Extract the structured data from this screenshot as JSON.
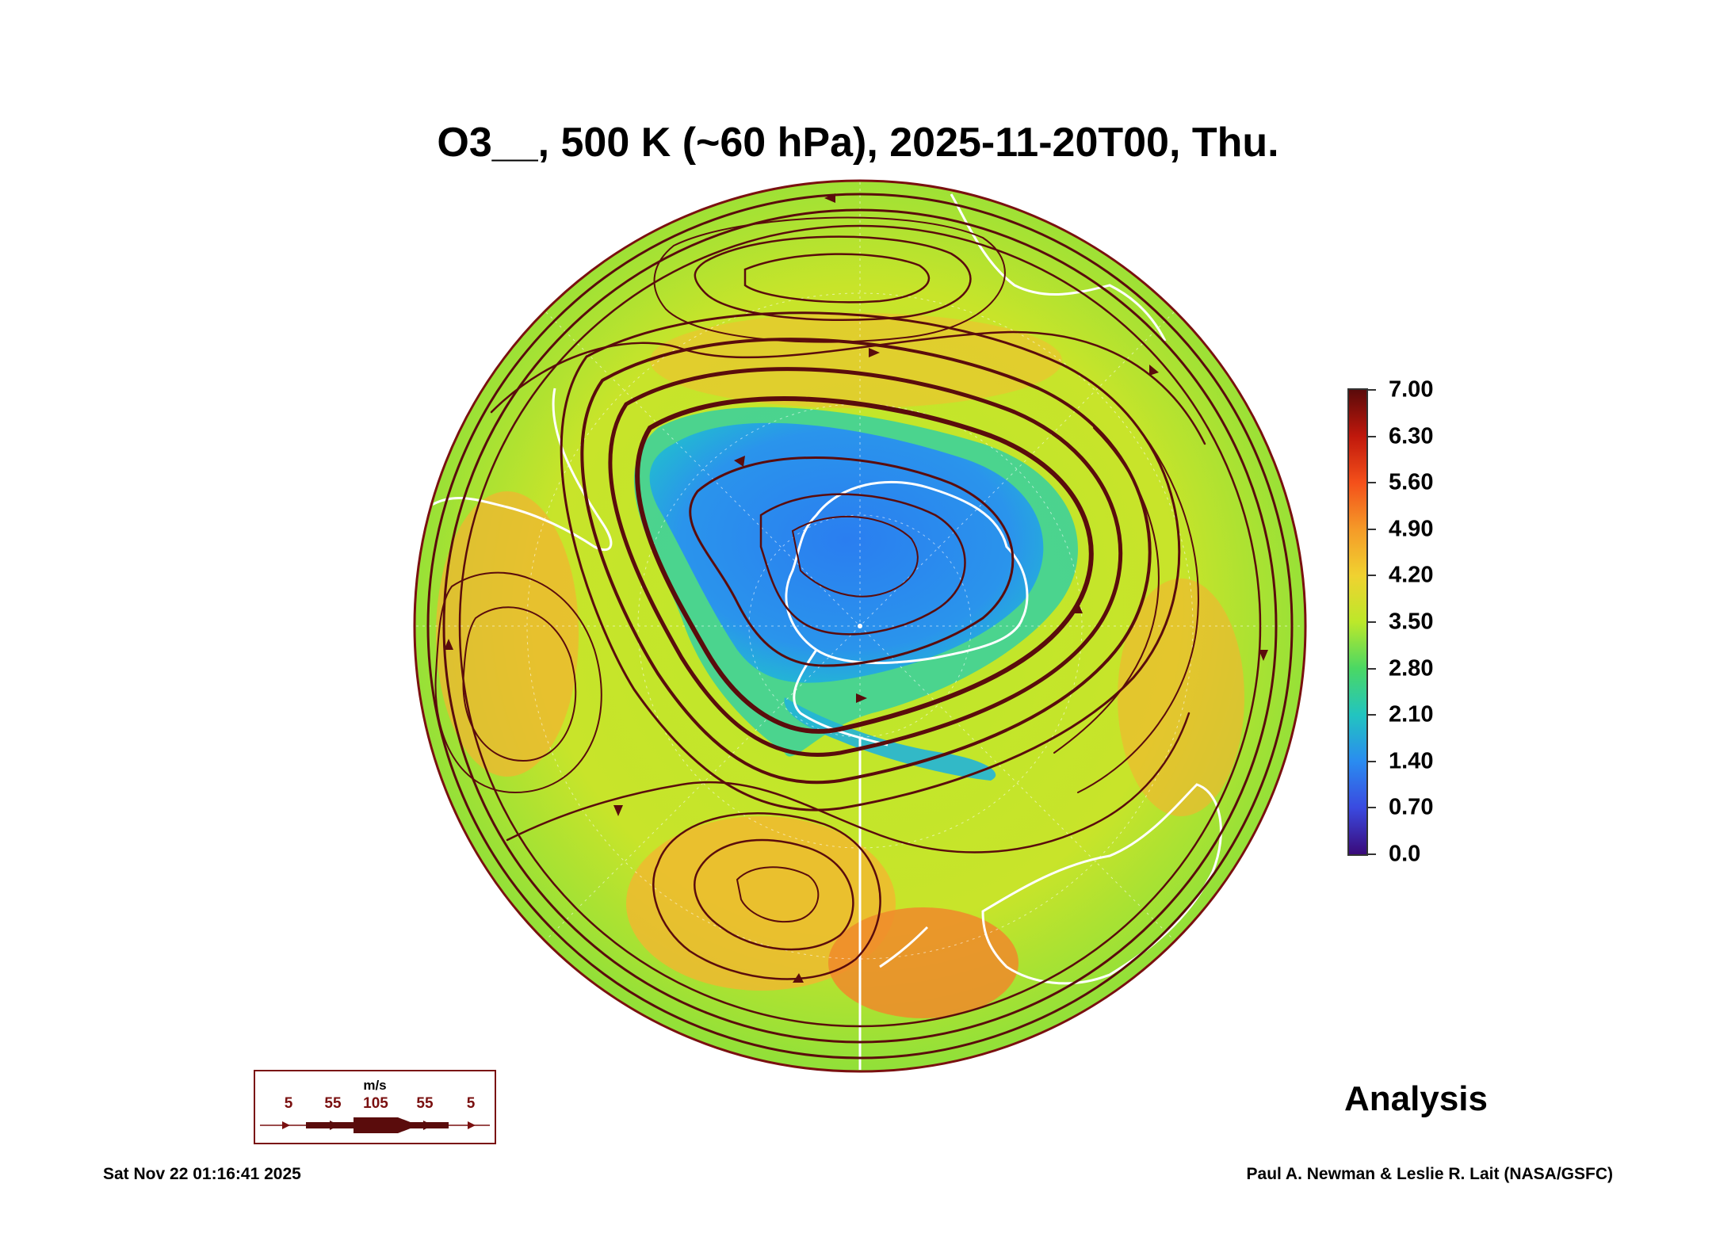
{
  "title": "O3__, 500 K (~60 hPa), 2025-11-20T00, Thu.",
  "colorbar": {
    "labels": [
      "7.00",
      "6.30",
      "5.60",
      "4.90",
      "4.20",
      "3.50",
      "2.80",
      "2.10",
      "1.40",
      "0.70",
      "0.0"
    ],
    "colors": [
      "#5a0a0a",
      "#c0180c",
      "#f4501a",
      "#f59a28",
      "#f0d230",
      "#bce82a",
      "#4ad864",
      "#22c4c0",
      "#2a8cf0",
      "#3a4ae0",
      "#3a0a7a"
    ]
  },
  "colors": {
    "streamline": "#5a0c0c",
    "coastline": "#ffffff",
    "ozone_hole": "#2a8cf0",
    "mid_latitudes": "#bce82a",
    "high_ozone": "#f59a28"
  },
  "wind_legend": {
    "unit": "m/s",
    "values": [
      "5",
      "55",
      "105",
      "55",
      "5"
    ]
  },
  "label_analysis": "Analysis",
  "footer": {
    "timestamp": "Sat Nov 22 01:16:41 2025",
    "credit": "Paul A. Newman & Leslie R. Lait (NASA/GSFC)"
  }
}
